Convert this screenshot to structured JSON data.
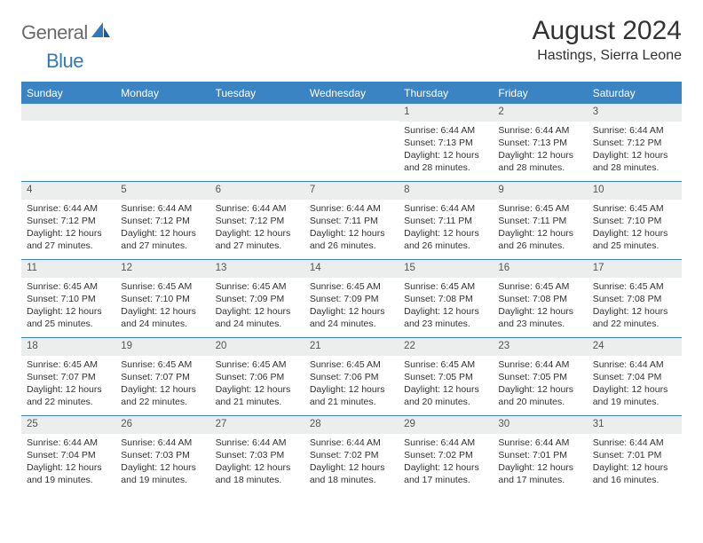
{
  "brand": {
    "part1": "General",
    "part2": "Blue"
  },
  "title": "August 2024",
  "location": "Hastings, Sierra Leone",
  "colors": {
    "header_bg": "#3b84c4",
    "header_text": "#ffffff",
    "daynum_bg": "#eceded",
    "border": "#3b84c4",
    "logo_gray": "#6b6b6b",
    "logo_blue": "#2f7abf"
  },
  "weekdays": [
    "Sunday",
    "Monday",
    "Tuesday",
    "Wednesday",
    "Thursday",
    "Friday",
    "Saturday"
  ],
  "weeks": [
    [
      {
        "n": "",
        "sr": "",
        "ss": "",
        "dl": ""
      },
      {
        "n": "",
        "sr": "",
        "ss": "",
        "dl": ""
      },
      {
        "n": "",
        "sr": "",
        "ss": "",
        "dl": ""
      },
      {
        "n": "",
        "sr": "",
        "ss": "",
        "dl": ""
      },
      {
        "n": "1",
        "sr": "Sunrise: 6:44 AM",
        "ss": "Sunset: 7:13 PM",
        "dl": "Daylight: 12 hours and 28 minutes."
      },
      {
        "n": "2",
        "sr": "Sunrise: 6:44 AM",
        "ss": "Sunset: 7:13 PM",
        "dl": "Daylight: 12 hours and 28 minutes."
      },
      {
        "n": "3",
        "sr": "Sunrise: 6:44 AM",
        "ss": "Sunset: 7:12 PM",
        "dl": "Daylight: 12 hours and 28 minutes."
      }
    ],
    [
      {
        "n": "4",
        "sr": "Sunrise: 6:44 AM",
        "ss": "Sunset: 7:12 PM",
        "dl": "Daylight: 12 hours and 27 minutes."
      },
      {
        "n": "5",
        "sr": "Sunrise: 6:44 AM",
        "ss": "Sunset: 7:12 PM",
        "dl": "Daylight: 12 hours and 27 minutes."
      },
      {
        "n": "6",
        "sr": "Sunrise: 6:44 AM",
        "ss": "Sunset: 7:12 PM",
        "dl": "Daylight: 12 hours and 27 minutes."
      },
      {
        "n": "7",
        "sr": "Sunrise: 6:44 AM",
        "ss": "Sunset: 7:11 PM",
        "dl": "Daylight: 12 hours and 26 minutes."
      },
      {
        "n": "8",
        "sr": "Sunrise: 6:44 AM",
        "ss": "Sunset: 7:11 PM",
        "dl": "Daylight: 12 hours and 26 minutes."
      },
      {
        "n": "9",
        "sr": "Sunrise: 6:45 AM",
        "ss": "Sunset: 7:11 PM",
        "dl": "Daylight: 12 hours and 26 minutes."
      },
      {
        "n": "10",
        "sr": "Sunrise: 6:45 AM",
        "ss": "Sunset: 7:10 PM",
        "dl": "Daylight: 12 hours and 25 minutes."
      }
    ],
    [
      {
        "n": "11",
        "sr": "Sunrise: 6:45 AM",
        "ss": "Sunset: 7:10 PM",
        "dl": "Daylight: 12 hours and 25 minutes."
      },
      {
        "n": "12",
        "sr": "Sunrise: 6:45 AM",
        "ss": "Sunset: 7:10 PM",
        "dl": "Daylight: 12 hours and 24 minutes."
      },
      {
        "n": "13",
        "sr": "Sunrise: 6:45 AM",
        "ss": "Sunset: 7:09 PM",
        "dl": "Daylight: 12 hours and 24 minutes."
      },
      {
        "n": "14",
        "sr": "Sunrise: 6:45 AM",
        "ss": "Sunset: 7:09 PM",
        "dl": "Daylight: 12 hours and 24 minutes."
      },
      {
        "n": "15",
        "sr": "Sunrise: 6:45 AM",
        "ss": "Sunset: 7:08 PM",
        "dl": "Daylight: 12 hours and 23 minutes."
      },
      {
        "n": "16",
        "sr": "Sunrise: 6:45 AM",
        "ss": "Sunset: 7:08 PM",
        "dl": "Daylight: 12 hours and 23 minutes."
      },
      {
        "n": "17",
        "sr": "Sunrise: 6:45 AM",
        "ss": "Sunset: 7:08 PM",
        "dl": "Daylight: 12 hours and 22 minutes."
      }
    ],
    [
      {
        "n": "18",
        "sr": "Sunrise: 6:45 AM",
        "ss": "Sunset: 7:07 PM",
        "dl": "Daylight: 12 hours and 22 minutes."
      },
      {
        "n": "19",
        "sr": "Sunrise: 6:45 AM",
        "ss": "Sunset: 7:07 PM",
        "dl": "Daylight: 12 hours and 22 minutes."
      },
      {
        "n": "20",
        "sr": "Sunrise: 6:45 AM",
        "ss": "Sunset: 7:06 PM",
        "dl": "Daylight: 12 hours and 21 minutes."
      },
      {
        "n": "21",
        "sr": "Sunrise: 6:45 AM",
        "ss": "Sunset: 7:06 PM",
        "dl": "Daylight: 12 hours and 21 minutes."
      },
      {
        "n": "22",
        "sr": "Sunrise: 6:45 AM",
        "ss": "Sunset: 7:05 PM",
        "dl": "Daylight: 12 hours and 20 minutes."
      },
      {
        "n": "23",
        "sr": "Sunrise: 6:44 AM",
        "ss": "Sunset: 7:05 PM",
        "dl": "Daylight: 12 hours and 20 minutes."
      },
      {
        "n": "24",
        "sr": "Sunrise: 6:44 AM",
        "ss": "Sunset: 7:04 PM",
        "dl": "Daylight: 12 hours and 19 minutes."
      }
    ],
    [
      {
        "n": "25",
        "sr": "Sunrise: 6:44 AM",
        "ss": "Sunset: 7:04 PM",
        "dl": "Daylight: 12 hours and 19 minutes."
      },
      {
        "n": "26",
        "sr": "Sunrise: 6:44 AM",
        "ss": "Sunset: 7:03 PM",
        "dl": "Daylight: 12 hours and 19 minutes."
      },
      {
        "n": "27",
        "sr": "Sunrise: 6:44 AM",
        "ss": "Sunset: 7:03 PM",
        "dl": "Daylight: 12 hours and 18 minutes."
      },
      {
        "n": "28",
        "sr": "Sunrise: 6:44 AM",
        "ss": "Sunset: 7:02 PM",
        "dl": "Daylight: 12 hours and 18 minutes."
      },
      {
        "n": "29",
        "sr": "Sunrise: 6:44 AM",
        "ss": "Sunset: 7:02 PM",
        "dl": "Daylight: 12 hours and 17 minutes."
      },
      {
        "n": "30",
        "sr": "Sunrise: 6:44 AM",
        "ss": "Sunset: 7:01 PM",
        "dl": "Daylight: 12 hours and 17 minutes."
      },
      {
        "n": "31",
        "sr": "Sunrise: 6:44 AM",
        "ss": "Sunset: 7:01 PM",
        "dl": "Daylight: 12 hours and 16 minutes."
      }
    ]
  ]
}
